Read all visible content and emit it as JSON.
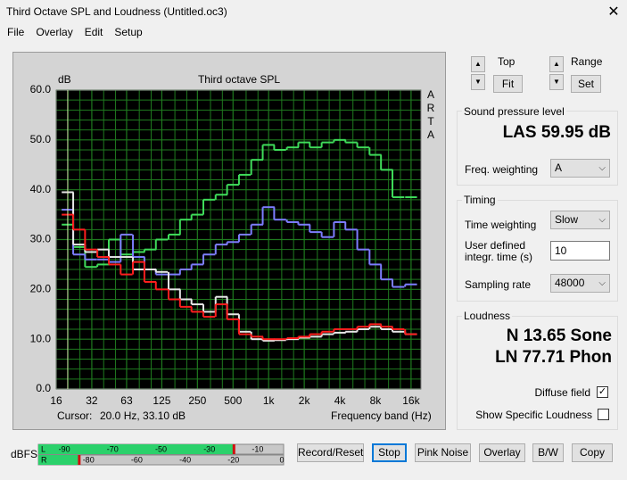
{
  "window": {
    "title": "Third Octave SPL and Loudness (Untitled.oc3)",
    "menu": [
      "File",
      "Overlay",
      "Edit",
      "Setup"
    ]
  },
  "chart_data": {
    "type": "step",
    "title": "Third octave SPL",
    "y_label": "dB",
    "side_label": "ARTA",
    "x_label": "Frequency band (Hz)",
    "cursor_label": "Cursor:",
    "cursor_value": "20.0 Hz, 33.10 dB",
    "log_x": true,
    "grid": true,
    "background": "#000000",
    "grid_color": "#1f7a1f",
    "x": [
      20,
      25,
      31.5,
      40,
      50,
      63,
      80,
      100,
      125,
      160,
      200,
      250,
      315,
      400,
      500,
      630,
      800,
      1000,
      1250,
      1600,
      2000,
      2500,
      3150,
      4000,
      5000,
      6300,
      8000,
      10000,
      12500,
      16000
    ],
    "series": [
      {
        "color": "#3fdc5a",
        "values": [
          33,
          28.5,
          24.5,
          25,
          30,
          27,
          27.5,
          28,
          30,
          31,
          34,
          35,
          38,
          39,
          41,
          43,
          46,
          49,
          48,
          48.5,
          49.5,
          48.5,
          49.5,
          50,
          49.5,
          48.5,
          47,
          44,
          38.5,
          38.5
        ]
      },
      {
        "color": "#7d7dff",
        "values": [
          36,
          27,
          26,
          26,
          25.5,
          31,
          26.5,
          24,
          23,
          23,
          24,
          25,
          27,
          29,
          29.5,
          31,
          33,
          36.5,
          34,
          33.5,
          33,
          31.5,
          30.5,
          33.5,
          32,
          28,
          25,
          22,
          20.5,
          21
        ]
      },
      {
        "color": "#e6e6e6",
        "values": [
          39.5,
          29,
          27.5,
          28,
          26.5,
          26.5,
          24,
          24,
          23.5,
          20,
          18,
          17,
          15.5,
          18.5,
          15,
          11.5,
          10,
          9.7,
          9.8,
          10,
          10.3,
          10.5,
          11,
          11.3,
          11.5,
          12,
          12.5,
          12,
          11.5,
          11
        ]
      },
      {
        "color": "#ff1e1e",
        "values": [
          35,
          32,
          28,
          26.5,
          25,
          23,
          25.5,
          21.5,
          20,
          18,
          16.5,
          15.5,
          14.5,
          17,
          14,
          11,
          10.5,
          10,
          10,
          10.2,
          10.5,
          11,
          11.5,
          12,
          12,
          12.5,
          13,
          12.5,
          12,
          11
        ]
      }
    ],
    "xlim": [
      16,
      19400
    ],
    "xticks": [
      16,
      32,
      63,
      125,
      250,
      500,
      {
        "value": 1000,
        "label": "1k"
      },
      {
        "value": 2000,
        "label": "2k"
      },
      {
        "value": 4000,
        "label": "4k"
      },
      {
        "value": 8000,
        "label": "8k"
      },
      {
        "value": 16000,
        "label": "16k"
      }
    ],
    "ylim": [
      0,
      60
    ],
    "yticks": [
      {
        "value": 0,
        "label": "0.0"
      },
      {
        "value": 10,
        "label": "10.0"
      },
      {
        "value": 20,
        "label": "20.0"
      },
      {
        "value": 30,
        "label": "30.0"
      },
      {
        "value": 40,
        "label": "40.0"
      },
      {
        "value": 50,
        "label": "50.0"
      },
      {
        "value": 60,
        "label": "60.0"
      }
    ]
  },
  "scale": {
    "top_label": "Top",
    "fit": "Fit",
    "range_label": "Range",
    "set": "Set"
  },
  "spl": {
    "title": "Sound pressure level",
    "reading": "LAS 59.95 dB",
    "weighting_label": "Freq. weighting",
    "weighting": "A"
  },
  "timing": {
    "title": "Timing",
    "time_weighting_label": "Time weighting",
    "time_weighting": "Slow",
    "integr_label_1": "User defined",
    "integr_label_2": "integr. time (s)",
    "integr_time": "10",
    "sampling_label": "Sampling rate",
    "sampling_rate": "48000"
  },
  "loudness": {
    "title": "Loudness",
    "sone": "N 13.65 Sone",
    "phon": "LN 77.71 Phon",
    "diffuse": "Diffuse field",
    "diffuse_checked": true,
    "specific": "Show Specific Loudness",
    "specific_checked": false
  },
  "meter": {
    "unit": "dBFS",
    "xlim": [
      -100,
      0
    ],
    "rows": [
      {
        "name": "L",
        "level": -20,
        "ticks": [
          -90,
          -70,
          -50,
          -30,
          -10
        ]
      },
      {
        "name": "R",
        "level": -84,
        "ticks": [
          -80,
          -60,
          -40,
          -20,
          0
        ]
      }
    ]
  },
  "buttons": [
    "Record/Reset",
    "Stop",
    "Pink Noise",
    "Overlay",
    "B/W",
    "Copy"
  ]
}
